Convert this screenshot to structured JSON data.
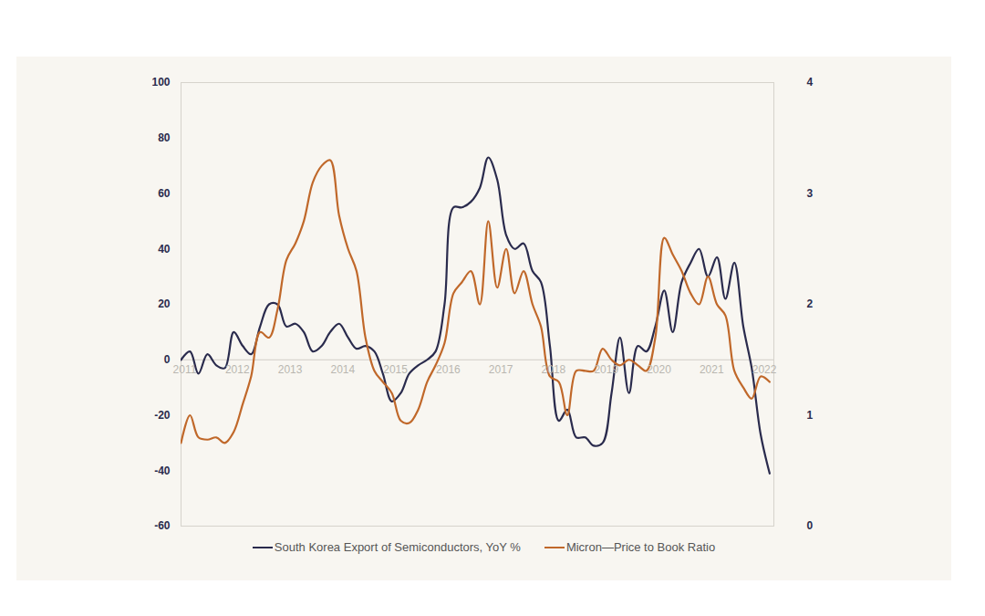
{
  "chart_data": {
    "type": "line",
    "x": [
      2011,
      2011.17,
      2011.33,
      2011.5,
      2011.67,
      2011.83,
      2012,
      2012.17,
      2012.33,
      2012.5,
      2012.67,
      2012.83,
      2013,
      2013.17,
      2013.33,
      2013.5,
      2013.67,
      2013.83,
      2014,
      2014.17,
      2014.33,
      2014.5,
      2014.67,
      2014.83,
      2015,
      2015.17,
      2015.33,
      2015.5,
      2015.67,
      2015.83,
      2016,
      2016.17,
      2016.33,
      2016.5,
      2016.67,
      2016.83,
      2017,
      2017.17,
      2017.33,
      2017.5,
      2017.67,
      2017.83,
      2018,
      2018.17,
      2018.33,
      2018.5,
      2018.67,
      2018.83,
      2019,
      2019.17,
      2019.33,
      2019.5,
      2019.67,
      2019.83,
      2020,
      2020.17,
      2020.33,
      2020.5,
      2020.67,
      2020.83,
      2021,
      2021.17,
      2021.33,
      2021.5,
      2021.67,
      2021.83,
      2022,
      2022.17
    ],
    "series": [
      {
        "name": "South Korea Export of Semiconductors, YoY %",
        "color": "#2a2b4d",
        "values": [
          0,
          3,
          -5,
          2,
          -2,
          -3,
          10,
          5,
          2,
          12,
          20,
          20,
          12,
          13,
          10,
          3,
          5,
          10,
          13,
          8,
          4,
          5,
          3,
          -5,
          -15,
          -12,
          -5,
          -2,
          0,
          3,
          20,
          55,
          55,
          57,
          62,
          73,
          65,
          45,
          40,
          42,
          32,
          28,
          5,
          -22,
          -18,
          -28,
          -28,
          -31,
          -30,
          -12,
          8,
          -12,
          5,
          3,
          12,
          25,
          10,
          28,
          35,
          40,
          30,
          37,
          22,
          35,
          12,
          -3,
          -27,
          -41
        ]
      },
      {
        "name": "Micron—Price to Book Ratio",
        "color": "#c0682a",
        "axis": "y2",
        "values": [
          0.75,
          1.0,
          0.8,
          0.78,
          0.8,
          0.75,
          0.85,
          1.1,
          1.35,
          1.75,
          1.7,
          1.95,
          2.4,
          2.55,
          2.75,
          3.1,
          3.25,
          3.3,
          2.8,
          2.5,
          2.3,
          1.7,
          1.4,
          1.3,
          1.2,
          0.95,
          0.93,
          1.05,
          1.3,
          1.45,
          1.65,
          2.1,
          2.2,
          2.3,
          2.0,
          2.75,
          2.15,
          2.5,
          2.1,
          2.3,
          2.0,
          1.8,
          1.35,
          1.3,
          1.0,
          1.4,
          1.4,
          1.4,
          1.6,
          1.5,
          1.45,
          1.5,
          1.45,
          1.4,
          1.7,
          2.6,
          2.45,
          2.3,
          2.1,
          2.0,
          2.25,
          2.0,
          1.9,
          1.4,
          1.25,
          1.15,
          1.35,
          1.3
        ]
      }
    ],
    "xlim": [
      2011,
      2022.25
    ],
    "xticks": [
      2011,
      2012,
      2013,
      2014,
      2015,
      2016,
      2017,
      2018,
      2019,
      2020,
      2021,
      2022
    ],
    "ylim": [
      -60,
      100
    ],
    "yticks": [
      -60,
      -40,
      -20,
      0,
      20,
      40,
      60,
      80,
      100
    ],
    "y2lim": [
      0,
      4
    ],
    "y2ticks": [
      0,
      1,
      2,
      3,
      4
    ],
    "grid": false,
    "legend": "bottom"
  }
}
